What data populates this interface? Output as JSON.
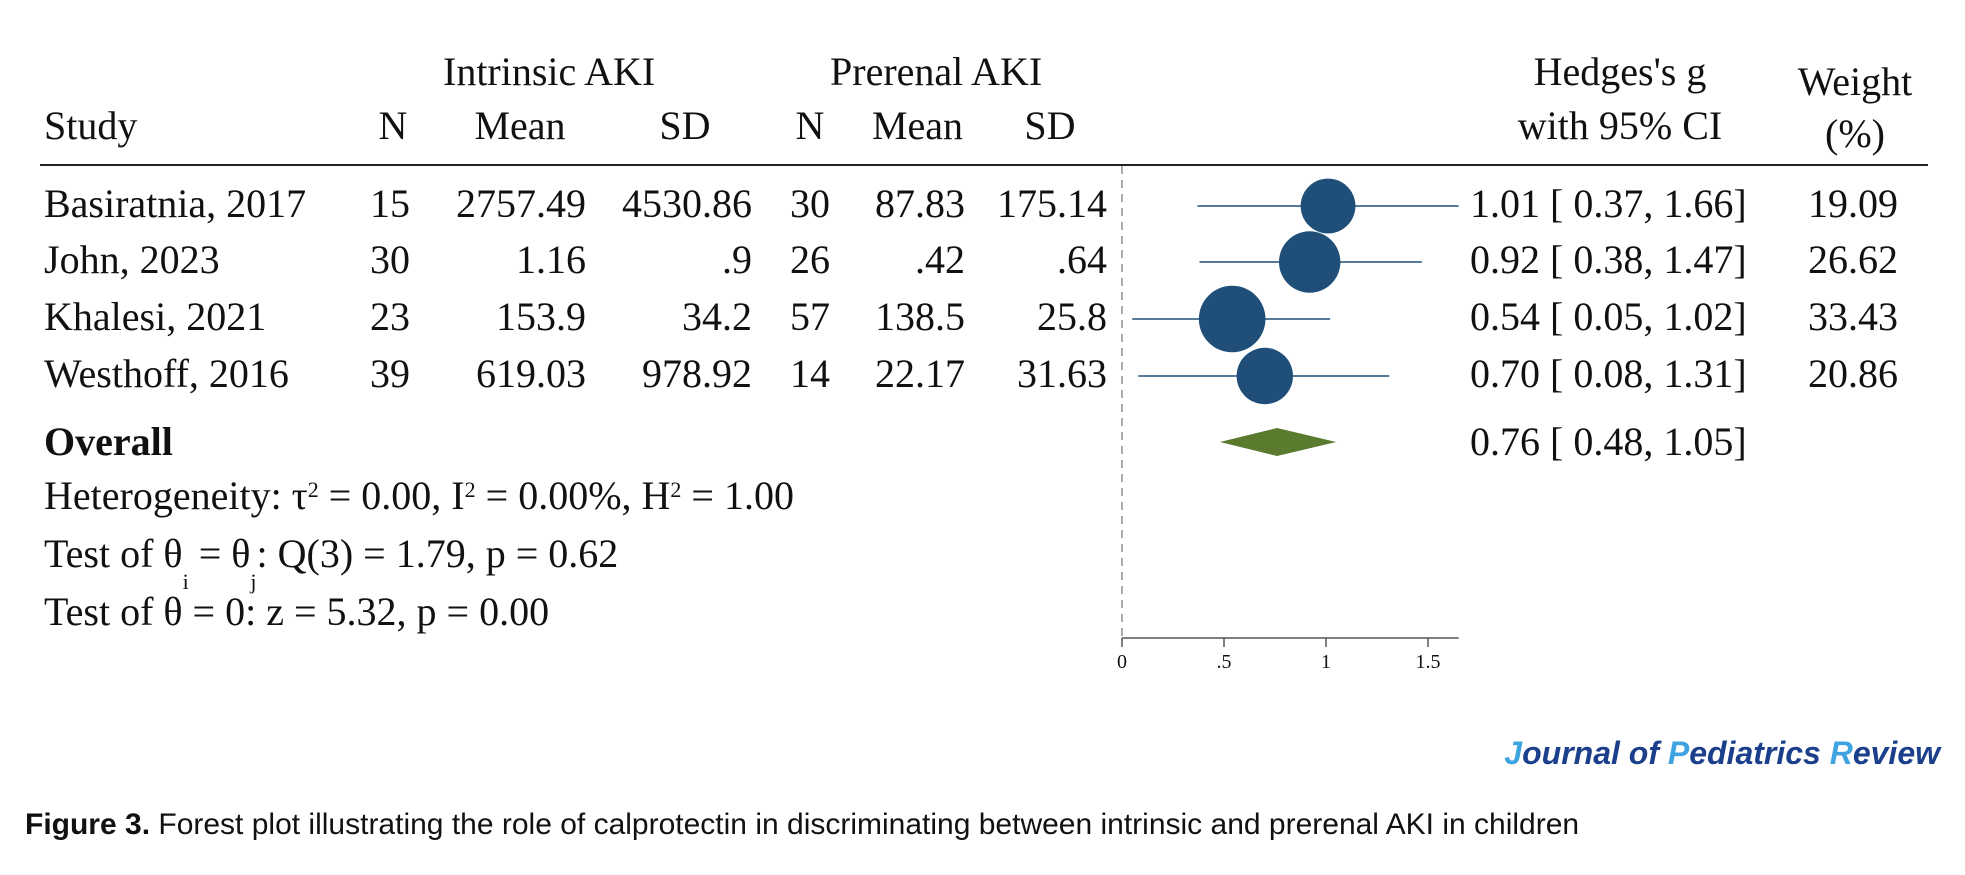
{
  "headers": {
    "study": "Study",
    "group1": "Intrinsic AKI",
    "group2": "Prerenal AKI",
    "n": "N",
    "mean": "Mean",
    "sd": "SD",
    "effect_line1": "Hedges's g",
    "effect_line2": "with 95% CI",
    "weight_line1": "Weight",
    "weight_line2": "(%)"
  },
  "overall_label": "Overall",
  "overall_ci_text": "0.76 [ 0.48, 1.05]",
  "stats": {
    "heterogeneity_prefix": "Heterogeneity: τ",
    "heterogeneity_tau_exp": "2",
    "heterogeneity_mid1": " = 0.00, I",
    "heterogeneity_i_exp": "2",
    "heterogeneity_mid2": " = 0.00%, H",
    "heterogeneity_h_exp": "2",
    "heterogeneity_end": " = 1.00",
    "test1_prefix": "Test of θ",
    "test1_sub_i": "i",
    "test1_eq": " = θ",
    "test1_sub_j": "j",
    "test1_end": ": Q(3) = 1.79, p = 0.62",
    "test2": "Test of θ = 0: z = 5.32, p = 0.00"
  },
  "chart_data": {
    "type": "forest",
    "xlim": [
      0,
      1.65
    ],
    "x_ticks": [
      0,
      0.5,
      1,
      1.5
    ],
    "x_tick_labels": [
      "0",
      ".5",
      "1",
      "1.5"
    ],
    "reference_line": 0,
    "colors": {
      "marker": "#1f4e79",
      "diamond": "#5a7a2e",
      "ci_line": "#1f4e79"
    },
    "studies": [
      {
        "study": "Basiratnia, 2017",
        "n1": "15",
        "mean1": "2757.49",
        "sd1": "4530.86",
        "n2": "30",
        "mean2": "87.83",
        "sd2": "175.14",
        "g": 1.01,
        "lo": 0.37,
        "hi": 1.66,
        "ci_text": "1.01 [ 0.37, 1.66]",
        "weight": "19.09"
      },
      {
        "study": "John, 2023",
        "n1": "30",
        "mean1": "1.16",
        "sd1": ".9",
        "n2": "26",
        "mean2": ".42",
        "sd2": ".64",
        "g": 0.92,
        "lo": 0.38,
        "hi": 1.47,
        "ci_text": "0.92 [ 0.38, 1.47]",
        "weight": "26.62"
      },
      {
        "study": "Khalesi, 2021",
        "n1": "23",
        "mean1": "153.9",
        "sd1": "34.2",
        "n2": "57",
        "mean2": "138.5",
        "sd2": "25.8",
        "g": 0.54,
        "lo": 0.05,
        "hi": 1.02,
        "ci_text": "0.54 [ 0.05, 1.02]",
        "weight": "33.43"
      },
      {
        "study": "Westhoff, 2016",
        "n1": "39",
        "mean1": "619.03",
        "sd1": "978.92",
        "n2": "14",
        "mean2": "22.17",
        "sd2": "31.63",
        "g": 0.7,
        "lo": 0.08,
        "hi": 1.31,
        "ci_text": "0.70 [ 0.08, 1.31]",
        "weight": "20.86"
      }
    ],
    "overall": {
      "g": 0.76,
      "lo": 0.48,
      "hi": 1.05
    }
  },
  "logo": {
    "j": "J",
    "ournal_of": "ournal of ",
    "p": "P",
    "ediatrics": "ediatrics ",
    "r": "R",
    "eview": "eview"
  },
  "caption": {
    "label": "Figure 3.",
    "text": " Forest plot illustrating the role of calprotectin in discriminating between intrinsic and prerenal AKI in children"
  }
}
